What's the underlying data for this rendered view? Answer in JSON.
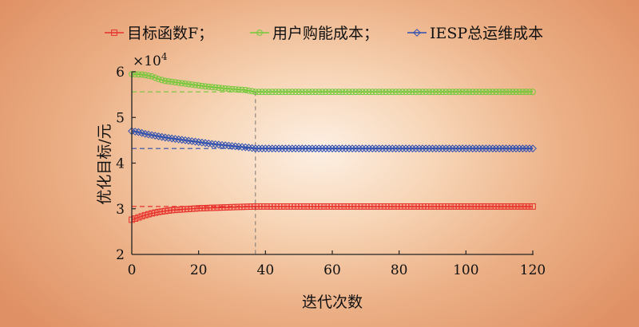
{
  "colors": {
    "total": "#e8312b",
    "user": "#72c837",
    "iesp": "#2e4fb0",
    "axis": "#222222",
    "marker_line": "#777777"
  },
  "chart_data": {
    "type": "line",
    "xlabel": "迭代次数",
    "ylabel": "优化目标/元",
    "y_multiplier": "×10",
    "y_multiplier_exp": "4",
    "xlim": [
      0,
      120
    ],
    "ylim": [
      2,
      6
    ],
    "xticks": [
      0,
      20,
      40,
      60,
      80,
      100,
      120
    ],
    "yticks": [
      2,
      3,
      4,
      5,
      6
    ],
    "convergence_iteration": 37,
    "series": [
      {
        "key": "total",
        "name": "目标函数F；",
        "marker": "square",
        "color_key": "total",
        "final_value": 3.05,
        "points": [
          [
            0,
            2.76
          ],
          [
            2,
            2.81
          ],
          [
            4,
            2.86
          ],
          [
            6,
            2.9
          ],
          [
            8,
            2.93
          ],
          [
            10,
            2.95
          ],
          [
            12,
            2.97
          ],
          [
            15,
            2.985
          ],
          [
            18,
            3.0
          ],
          [
            20,
            3.01
          ],
          [
            24,
            3.02
          ],
          [
            28,
            3.03
          ],
          [
            32,
            3.04
          ],
          [
            37,
            3.05
          ],
          [
            120,
            3.05
          ]
        ]
      },
      {
        "key": "user",
        "name": "用户购能成本；",
        "marker": "circle",
        "color_key": "user",
        "final_value": 5.56,
        "points": [
          [
            0,
            5.95
          ],
          [
            3,
            5.94
          ],
          [
            6,
            5.9
          ],
          [
            8,
            5.84
          ],
          [
            10,
            5.8
          ],
          [
            14,
            5.76
          ],
          [
            18,
            5.72
          ],
          [
            22,
            5.68
          ],
          [
            26,
            5.65
          ],
          [
            30,
            5.62
          ],
          [
            34,
            5.6
          ],
          [
            37,
            5.56
          ],
          [
            120,
            5.56
          ]
        ]
      },
      {
        "key": "iesp",
        "name": "IESP总运维成本",
        "marker": "diamond",
        "color_key": "iesp",
        "final_value": 4.32,
        "points": [
          [
            0,
            4.7
          ],
          [
            2,
            4.68
          ],
          [
            4,
            4.64
          ],
          [
            7,
            4.6
          ],
          [
            10,
            4.56
          ],
          [
            13,
            4.53
          ],
          [
            16,
            4.5
          ],
          [
            20,
            4.46
          ],
          [
            24,
            4.42
          ],
          [
            28,
            4.39
          ],
          [
            32,
            4.36
          ],
          [
            35,
            4.34
          ],
          [
            37,
            4.32
          ],
          [
            120,
            4.32
          ]
        ]
      }
    ]
  }
}
